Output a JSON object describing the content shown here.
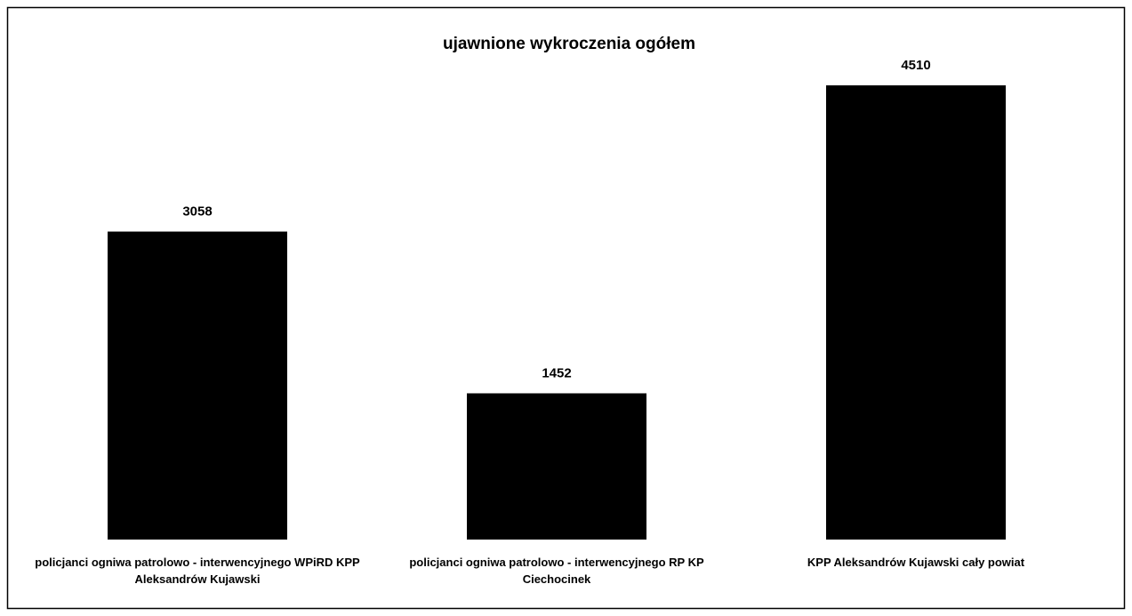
{
  "chart_data": {
    "type": "bar",
    "title": "ujawnione wykroczenia ogółem",
    "categories": [
      "policjanci ogniwa patrolowo - interwencyjnego WPiRD KPP Aleksandrów Kujawski",
      "policjanci ogniwa patrolowo - interwencyjnego RP KP Ciechocinek",
      "KPP Aleksandrów Kujawski cały powiat"
    ],
    "values": [
      3058,
      1452,
      4510
    ],
    "color": "#000000",
    "ylim": [
      0,
      5000
    ],
    "grid": false
  }
}
